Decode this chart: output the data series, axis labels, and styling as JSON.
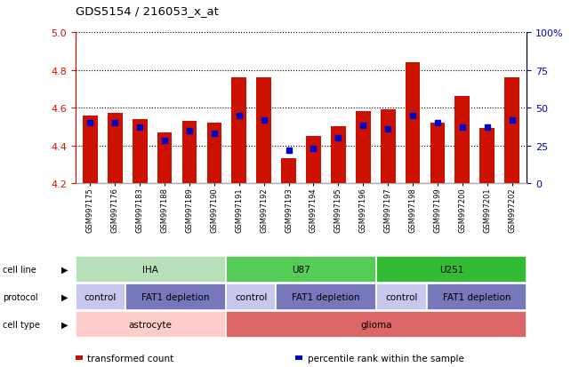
{
  "title": "GDS5154 / 216053_x_at",
  "samples": [
    "GSM997175",
    "GSM997176",
    "GSM997183",
    "GSM997188",
    "GSM997189",
    "GSM997190",
    "GSM997191",
    "GSM997192",
    "GSM997193",
    "GSM997194",
    "GSM997195",
    "GSM997196",
    "GSM997197",
    "GSM997198",
    "GSM997199",
    "GSM997200",
    "GSM997201",
    "GSM997202"
  ],
  "transformed_count": [
    4.56,
    4.57,
    4.54,
    4.47,
    4.53,
    4.52,
    4.76,
    4.76,
    4.33,
    4.45,
    4.5,
    4.58,
    4.59,
    4.84,
    4.52,
    4.66,
    4.49,
    4.76
  ],
  "percentile_rank": [
    40,
    40,
    37,
    28,
    35,
    33,
    45,
    42,
    22,
    23,
    30,
    38,
    36,
    45,
    40,
    37,
    37,
    42
  ],
  "ylim_left": [
    4.2,
    5.0
  ],
  "yticks_left": [
    4.2,
    4.4,
    4.6,
    4.8,
    5.0
  ],
  "ylim_right": [
    0,
    100
  ],
  "yticks_right": [
    0,
    25,
    50,
    75,
    100
  ],
  "yticklabels_right": [
    "0",
    "25",
    "50",
    "75",
    "100%"
  ],
  "bar_color": "#cc1100",
  "percentile_color": "#0000cc",
  "base_value": 4.2,
  "cell_line_groups": [
    {
      "label": "IHA",
      "start": 0,
      "end": 5,
      "color": "#b8e0b8"
    },
    {
      "label": "U87",
      "start": 6,
      "end": 11,
      "color": "#55cc55"
    },
    {
      "label": "U251",
      "start": 12,
      "end": 17,
      "color": "#33bb33"
    }
  ],
  "protocol_groups": [
    {
      "label": "control",
      "start": 0,
      "end": 1,
      "color": "#c8c8ee"
    },
    {
      "label": "FAT1 depletion",
      "start": 2,
      "end": 5,
      "color": "#7777bb"
    },
    {
      "label": "control",
      "start": 6,
      "end": 7,
      "color": "#c8c8ee"
    },
    {
      "label": "FAT1 depletion",
      "start": 8,
      "end": 11,
      "color": "#7777bb"
    },
    {
      "label": "control",
      "start": 12,
      "end": 13,
      "color": "#c8c8ee"
    },
    {
      "label": "FAT1 depletion",
      "start": 14,
      "end": 17,
      "color": "#7777bb"
    }
  ],
  "cell_type_groups": [
    {
      "label": "astrocyte",
      "start": 0,
      "end": 5,
      "color": "#ffcccc"
    },
    {
      "label": "glioma",
      "start": 6,
      "end": 17,
      "color": "#dd6666"
    }
  ],
  "row_labels": [
    "cell line",
    "protocol",
    "cell type"
  ],
  "legend_items": [
    {
      "label": "transformed count",
      "color": "#cc1100",
      "marker": "s"
    },
    {
      "label": "percentile rank within the sample",
      "color": "#0000cc",
      "marker": "s"
    }
  ],
  "tick_label_color_left": "#cc1100",
  "tick_label_color_right": "#0000cc",
  "xtick_bg_color": "#dddddd"
}
